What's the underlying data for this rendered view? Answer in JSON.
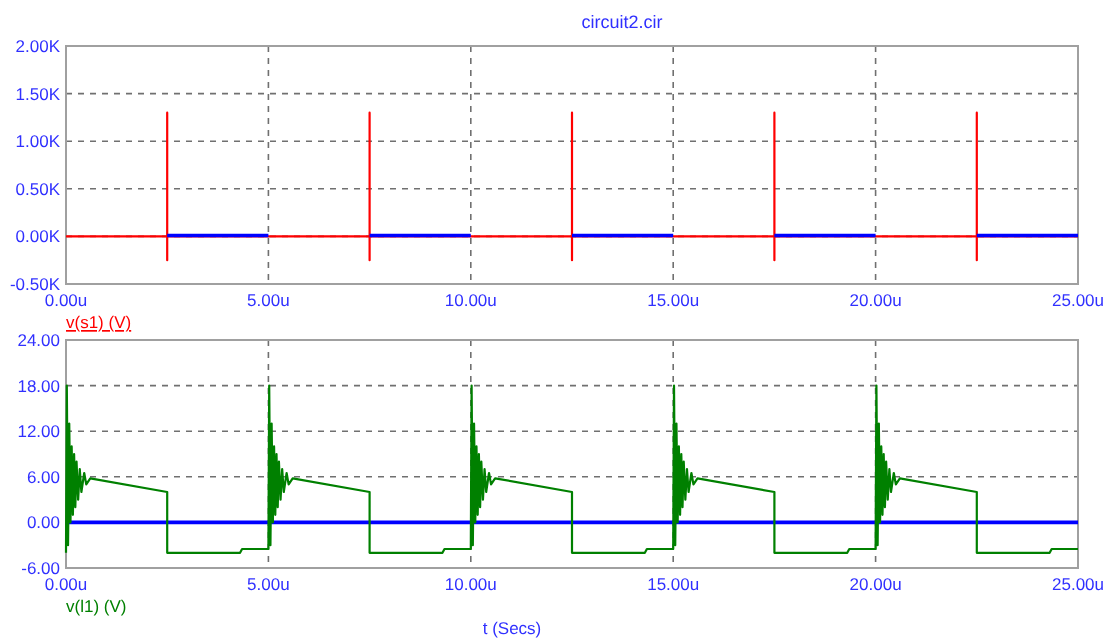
{
  "chart_data": [
    {
      "type": "line",
      "title": "circuit2.cir",
      "xlim": [
        0,
        25
      ],
      "xticks": [
        {
          "value": 0,
          "label": "0.00u"
        },
        {
          "value": 5,
          "label": "5.00u"
        },
        {
          "value": 10,
          "label": "10.00u"
        },
        {
          "value": 15,
          "label": "15.00u"
        },
        {
          "value": 20,
          "label": "20.00u"
        },
        {
          "value": 25,
          "label": "25.00u"
        }
      ],
      "ylim": [
        -500,
        2000
      ],
      "yticks": [
        {
          "value": -500,
          "label": "-0.50K"
        },
        {
          "value": 0,
          "label": "0.00K"
        },
        {
          "value": 500,
          "label": "0.50K"
        },
        {
          "value": 1000,
          "label": "1.00K"
        },
        {
          "value": 1500,
          "label": "1.50K"
        },
        {
          "value": 2000,
          "label": "2.00K"
        }
      ],
      "grid": true,
      "legend": "bottom left",
      "series": [
        {
          "name": "v(s1) (V)",
          "color": "#ff0000",
          "x": [
            0,
            2.5,
            2.5,
            2.5,
            2.5,
            7.5,
            7.5,
            7.5,
            7.5,
            12.5,
            12.5,
            12.5,
            12.5,
            17.5,
            17.5,
            17.5,
            17.5,
            22.5,
            22.5,
            22.5,
            22.5,
            25
          ],
          "values": [
            0,
            0,
            1300,
            -250,
            0,
            0,
            1300,
            -250,
            0,
            0,
            1300,
            -250,
            0,
            0,
            1300,
            -250,
            0,
            0,
            1300,
            -250,
            0,
            0
          ]
        },
        {
          "color": "#0000ff",
          "x": [
            2.5,
            5,
            5.01,
            7.5,
            10,
            10.01,
            12.5,
            15,
            15.01,
            17.5,
            20,
            20.01,
            22.5,
            25
          ],
          "values": [
            10,
            10,
            null,
            10,
            10,
            null,
            10,
            10,
            null,
            10,
            10,
            null,
            10,
            10
          ]
        }
      ]
    },
    {
      "type": "line",
      "xlabel": "t (Secs)",
      "xlim": [
        0,
        25
      ],
      "xticks": [
        {
          "value": 0,
          "label": "0.00u"
        },
        {
          "value": 5,
          "label": "5.00u"
        },
        {
          "value": 10,
          "label": "10.00u"
        },
        {
          "value": 15,
          "label": "15.00u"
        },
        {
          "value": 20,
          "label": "20.00u"
        },
        {
          "value": 25,
          "label": "25.00u"
        }
      ],
      "ylim": [
        -6,
        24
      ],
      "yticks": [
        {
          "value": -6,
          "label": "-6.00"
        },
        {
          "value": 0,
          "label": "0.00"
        },
        {
          "value": 6,
          "label": "6.00"
        },
        {
          "value": 12,
          "label": "12.00"
        },
        {
          "value": 18,
          "label": "18.00"
        },
        {
          "value": 24,
          "label": "24.00"
        }
      ],
      "grid": true,
      "legend": "bottom left",
      "series": [
        {
          "color": "#0000ff",
          "x": [
            0,
            25
          ],
          "values": [
            0,
            0
          ]
        },
        {
          "name": "v(l1) (V)",
          "color": "#008000",
          "x": [
            0,
            0.02,
            0.05,
            0.08,
            0.11,
            0.14,
            0.17,
            0.2,
            0.23,
            0.26,
            0.3,
            0.34,
            0.38,
            0.45,
            0.5,
            0.6,
            2.5,
            2.5,
            4.3,
            4.35,
            5,
            5.02,
            5.05,
            5.08,
            5.11,
            5.14,
            5.17,
            5.2,
            5.23,
            5.26,
            5.3,
            5.34,
            5.38,
            5.45,
            5.5,
            5.6,
            7.5,
            7.5,
            9.3,
            9.35,
            10,
            10.02,
            10.05,
            10.08,
            10.11,
            10.14,
            10.17,
            10.2,
            10.23,
            10.26,
            10.3,
            10.34,
            10.38,
            10.45,
            10.5,
            10.6,
            12.5,
            12.5,
            14.3,
            14.35,
            15,
            15.02,
            15.05,
            15.08,
            15.11,
            15.14,
            15.17,
            15.2,
            15.23,
            15.26,
            15.3,
            15.34,
            15.38,
            15.45,
            15.5,
            15.6,
            17.5,
            17.5,
            19.3,
            19.35,
            20,
            20.02,
            20.05,
            20.08,
            20.11,
            20.14,
            20.17,
            20.2,
            20.23,
            20.26,
            20.3,
            20.34,
            20.38,
            20.45,
            20.5,
            20.6,
            22.5,
            22.5,
            24.3,
            24.35,
            25
          ],
          "values": [
            -4,
            18,
            -3,
            13,
            0,
            10,
            1,
            9,
            2,
            8,
            3,
            7,
            4,
            6.5,
            5,
            5.8,
            4,
            -4,
            -4,
            -3.5,
            -3.5,
            18,
            -3,
            13,
            0,
            10,
            1,
            9,
            2,
            8,
            3,
            7,
            4,
            6.5,
            5,
            5.8,
            4,
            -4,
            -4,
            -3.5,
            -3.5,
            18,
            -3,
            13,
            0,
            10,
            1,
            9,
            2,
            8,
            3,
            7,
            4,
            6.5,
            5,
            5.8,
            4,
            -4,
            -4,
            -3.5,
            -3.5,
            18,
            -3,
            13,
            0,
            10,
            1,
            9,
            2,
            8,
            3,
            7,
            4,
            6.5,
            5,
            5.8,
            4,
            -4,
            -4,
            -3.5,
            -3.5,
            18,
            -3,
            13,
            0,
            10,
            1,
            9,
            2,
            8,
            3,
            7,
            4,
            6.5,
            5,
            5.8,
            4,
            -4,
            -4,
            -3.5,
            -3.5
          ]
        }
      ]
    }
  ]
}
